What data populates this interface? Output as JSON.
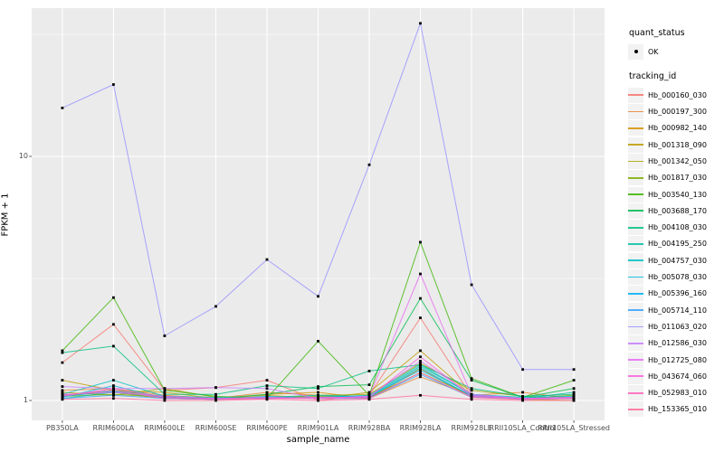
{
  "axes": {
    "x_title": "sample_name",
    "y_title": "FPKM + 1",
    "y_major_tick_labels": [
      "1",
      "10"
    ]
  },
  "legend": {
    "quant_status": {
      "title": "quant_status",
      "items": [
        {
          "label": "OK"
        }
      ]
    },
    "tracking_id_title": "tracking_id"
  },
  "style": {
    "panel_bg": "#EBEBEB",
    "grid_color": "#FFFFFF",
    "legend_key_bg": "#F2F2F2",
    "axis_text_color": "#4D4D4D",
    "point_color": "#000000"
  },
  "chart_data": {
    "type": "line",
    "title": "",
    "xlabel": "sample_name",
    "ylabel": "FPKM + 1",
    "y_scale": "log10",
    "ylim": [
      0.95,
      40.5
    ],
    "y_major_ticks": [
      1,
      10
    ],
    "y_minor_ticks": [
      3.1623,
      31.623
    ],
    "grid": true,
    "legend_position": "right",
    "point_marker": "black-dot",
    "categories": [
      "PB350LA",
      "RRIM600LA",
      "RRIM600LE",
      "RRIM600SE",
      "RRIM600PE",
      "RRIM901LA",
      "RRIM928BA",
      "RRIM928LA",
      "RRIM928LE",
      "RRII105LA_Control",
      "RRII105LA_Stressed"
    ],
    "series": [
      {
        "name": "Hb_000160_030",
        "color": "#F8766D",
        "values": [
          1.43,
          2.05,
          1.1,
          1.13,
          1.21,
          1.0,
          1.05,
          2.18,
          1.04,
          1.02,
          1.02
        ]
      },
      {
        "name": "Hb_000197_300",
        "color": "#EA8331",
        "values": [
          1.1,
          1.12,
          1.05,
          1.02,
          1.08,
          1.05,
          1.02,
          1.25,
          1.05,
          1.08,
          1.02
        ]
      },
      {
        "name": "Hb_000982_140",
        "color": "#D89000",
        "values": [
          1.05,
          1.08,
          1.02,
          1.01,
          1.06,
          1.08,
          1.02,
          1.35,
          1.03,
          1.01,
          1.0
        ]
      },
      {
        "name": "Hb_001318_090",
        "color": "#C09B00",
        "values": [
          1.21,
          1.1,
          1.08,
          1.02,
          1.05,
          1.02,
          1.08,
          1.6,
          1.05,
          1.02,
          1.03
        ]
      },
      {
        "name": "Hb_001342_050",
        "color": "#A3A500",
        "values": [
          1.08,
          1.05,
          1.12,
          1.03,
          1.02,
          1.05,
          1.06,
          1.42,
          1.1,
          1.04,
          1.02
        ]
      },
      {
        "name": "Hb_001817_030",
        "color": "#7CAE00",
        "values": [
          1.04,
          1.06,
          1.03,
          1.01,
          1.02,
          1.04,
          1.03,
          1.3,
          1.05,
          1.02,
          1.05
        ]
      },
      {
        "name": "Hb_003540_130",
        "color": "#39B600",
        "values": [
          1.6,
          2.64,
          1.1,
          1.04,
          1.02,
          1.75,
          1.05,
          4.45,
          1.23,
          1.03,
          1.21
        ]
      },
      {
        "name": "Hb_003688_170",
        "color": "#00BB4E",
        "values": [
          1.05,
          1.1,
          1.04,
          1.02,
          1.06,
          1.14,
          1.16,
          2.62,
          1.21,
          1.03,
          1.12
        ]
      },
      {
        "name": "Hb_004108_030",
        "color": "#00BF7D",
        "values": [
          1.57,
          1.67,
          1.06,
          1.06,
          1.15,
          1.12,
          1.32,
          1.4,
          1.12,
          1.04,
          1.06
        ]
      },
      {
        "name": "Hb_004195_250",
        "color": "#00C1A3",
        "values": [
          1.02,
          1.08,
          1.03,
          1.02,
          1.03,
          1.05,
          1.04,
          1.38,
          1.06,
          1.02,
          1.08
        ]
      },
      {
        "name": "Hb_004757_030",
        "color": "#00BFC4",
        "values": [
          1.06,
          1.21,
          1.04,
          1.03,
          1.02,
          1.03,
          1.05,
          1.4,
          1.06,
          1.03,
          1.04
        ]
      },
      {
        "name": "Hb_005078_030",
        "color": "#00BAE0",
        "values": [
          1.03,
          1.15,
          1.02,
          1.01,
          1.04,
          1.02,
          1.03,
          1.36,
          1.04,
          1.02,
          1.03
        ]
      },
      {
        "name": "Hb_005396_160",
        "color": "#00B0F6",
        "values": [
          1.04,
          1.09,
          1.03,
          1.02,
          1.02,
          1.03,
          1.04,
          1.33,
          1.05,
          1.01,
          1.02
        ]
      },
      {
        "name": "Hb_005714_110",
        "color": "#35A2FF",
        "values": [
          1.02,
          1.05,
          1.02,
          1.01,
          1.03,
          1.02,
          1.02,
          1.28,
          1.03,
          1.02,
          1.02
        ]
      },
      {
        "name": "Hb_011063_020",
        "color": "#9590FF",
        "values": [
          15.8,
          19.7,
          1.84,
          2.43,
          3.78,
          2.67,
          9.24,
          35.1,
          2.98,
          1.34,
          1.34
        ]
      },
      {
        "name": "Hb_012586_030",
        "color": "#C77CFF",
        "values": [
          1.14,
          1.12,
          1.12,
          1.13,
          1.12,
          1.02,
          1.04,
          1.45,
          1.06,
          1.02,
          1.03
        ]
      },
      {
        "name": "Hb_012725_080",
        "color": "#E76BF3",
        "values": [
          1.06,
          1.08,
          1.04,
          1.02,
          1.03,
          1.02,
          1.04,
          3.3,
          1.05,
          1.02,
          1.03
        ]
      },
      {
        "name": "Hb_043674_060",
        "color": "#FA62DB",
        "values": [
          1.04,
          1.12,
          1.03,
          1.02,
          1.02,
          1.03,
          1.03,
          1.51,
          1.04,
          1.02,
          1.02
        ]
      },
      {
        "name": "Hb_052983_010",
        "color": "#FF62BC",
        "values": [
          1.05,
          1.1,
          1.02,
          1.01,
          1.02,
          1.02,
          1.02,
          1.3,
          1.03,
          1.01,
          1.02
        ]
      },
      {
        "name": "Hb_153365_010",
        "color": "#FF6A98",
        "values": [
          1.01,
          1.02,
          1.0,
          1.0,
          1.01,
          1.0,
          1.01,
          1.05,
          1.01,
          1.0,
          1.0
        ]
      }
    ]
  }
}
